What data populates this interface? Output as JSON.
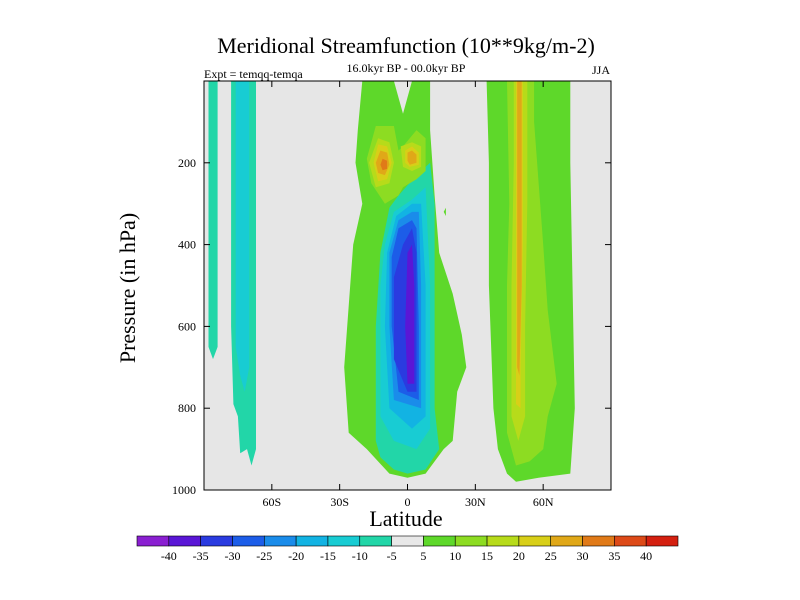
{
  "chart_data": {
    "type": "heatmap",
    "title": "Meridional Streamfunction (10**9kg/m-2)",
    "subtitle": "16.0kyr BP - 00.0kyr BP",
    "left_annotation": "Expt = temqq-temqa",
    "right_annotation": "JJA",
    "xlabel": "Latitude",
    "ylabel": "Pressure (in hPa)",
    "xlim": [
      -90,
      90
    ],
    "ylim": [
      1000,
      0
    ],
    "x_ticks": [
      {
        "value": -60,
        "label": "60S"
      },
      {
        "value": -30,
        "label": "30S"
      },
      {
        "value": 0,
        "label": "0"
      },
      {
        "value": 30,
        "label": "30N"
      },
      {
        "value": 60,
        "label": "60N"
      }
    ],
    "y_ticks": [
      {
        "value": 200,
        "label": "200"
      },
      {
        "value": 400,
        "label": "400"
      },
      {
        "value": 600,
        "label": "600"
      },
      {
        "value": 800,
        "label": "800"
      },
      {
        "value": 1000,
        "label": "1000"
      }
    ],
    "background_color": "#e6e6e6",
    "colorbar": {
      "levels": [
        "-40",
        "-35",
        "-30",
        "-25",
        "-20",
        "-15",
        "-10",
        "-5",
        "5",
        "10",
        "15",
        "20",
        "25",
        "30",
        "35",
        "40"
      ],
      "colors": [
        "#8a1fd1",
        "#5a16d6",
        "#2a3be0",
        "#1c5de8",
        "#1a8cea",
        "#12b3e3",
        "#18ccd3",
        "#22d6a8",
        "#e8e8e8",
        "#5ed82a",
        "#8ddc22",
        "#b7db1a",
        "#d8cf18",
        "#e0a818",
        "#e07a18",
        "#dd4a18",
        "#d42010"
      ]
    },
    "regions": [
      {
        "label": "-5",
        "color": "#22d6a8",
        "points": [
          [
            -88,
            0
          ],
          [
            -84,
            0
          ],
          [
            -84,
            650
          ],
          [
            -86,
            680
          ],
          [
            -88,
            650
          ]
        ]
      },
      {
        "label": "-5",
        "color": "#22d6a8",
        "points": [
          [
            -78,
            0
          ],
          [
            -67,
            0
          ],
          [
            -67,
            900
          ],
          [
            -69,
            940
          ],
          [
            -71,
            900
          ],
          [
            -74,
            910
          ],
          [
            -75,
            820
          ],
          [
            -77,
            790
          ],
          [
            -78,
            600
          ]
        ]
      },
      {
        "label": "-10",
        "color": "#18ccd3",
        "points": [
          [
            -76,
            0
          ],
          [
            -70,
            0
          ],
          [
            -70,
            700
          ],
          [
            -72,
            760
          ],
          [
            -74,
            720
          ],
          [
            -76,
            650
          ]
        ]
      },
      {
        "label": "5",
        "color": "#5ed82a",
        "points": [
          [
            -20,
            0
          ],
          [
            -6,
            0
          ],
          [
            -2,
            80
          ],
          [
            2,
            0
          ],
          [
            10,
            0
          ],
          [
            10,
            120
          ],
          [
            12,
            280
          ],
          [
            14,
            420
          ],
          [
            20,
            520
          ],
          [
            24,
            620
          ],
          [
            26,
            700
          ],
          [
            22,
            760
          ],
          [
            20,
            880
          ],
          [
            16,
            900
          ],
          [
            8,
            960
          ],
          [
            0,
            970
          ],
          [
            -8,
            960
          ],
          [
            -18,
            900
          ],
          [
            -26,
            860
          ],
          [
            -28,
            700
          ],
          [
            -24,
            400
          ],
          [
            -20,
            300
          ],
          [
            -23,
            200
          ],
          [
            -22,
            120
          ]
        ]
      },
      {
        "label": "-5",
        "color": "#22d6a8",
        "points": [
          [
            -8,
            310
          ],
          [
            -4,
            280
          ],
          [
            4,
            230
          ],
          [
            10,
            200
          ],
          [
            12,
            300
          ],
          [
            12,
            500
          ],
          [
            12,
            800
          ],
          [
            14,
            900
          ],
          [
            8,
            950
          ],
          [
            0,
            960
          ],
          [
            -6,
            950
          ],
          [
            -12,
            920
          ],
          [
            -14,
            880
          ],
          [
            -14,
            600
          ],
          [
            -12,
            420
          ]
        ]
      },
      {
        "label": "-10",
        "color": "#18ccd3",
        "points": [
          [
            -6,
            320
          ],
          [
            2,
            290
          ],
          [
            8,
            260
          ],
          [
            10,
            500
          ],
          [
            10,
            850
          ],
          [
            4,
            900
          ],
          [
            -6,
            880
          ],
          [
            -12,
            820
          ],
          [
            -12,
            500
          ],
          [
            -10,
            400
          ]
        ]
      },
      {
        "label": "-15",
        "color": "#12b3e3",
        "points": [
          [
            -5,
            330
          ],
          [
            2,
            300
          ],
          [
            6,
            300
          ],
          [
            8,
            500
          ],
          [
            8,
            820
          ],
          [
            2,
            850
          ],
          [
            -8,
            800
          ],
          [
            -10,
            600
          ],
          [
            -9,
            420
          ]
        ]
      },
      {
        "label": "-20",
        "color": "#1a8cea",
        "points": [
          [
            -4,
            340
          ],
          [
            2,
            320
          ],
          [
            5,
            320
          ],
          [
            6,
            500
          ],
          [
            6,
            800
          ],
          [
            -6,
            780
          ],
          [
            -8,
            600
          ],
          [
            -8,
            420
          ]
        ]
      },
      {
        "label": "-25",
        "color": "#1c5de8",
        "points": [
          [
            -4,
            360
          ],
          [
            2,
            340
          ],
          [
            4,
            360
          ],
          [
            5,
            600
          ],
          [
            5,
            780
          ],
          [
            -4,
            760
          ],
          [
            -7,
            600
          ],
          [
            -7,
            430
          ]
        ]
      },
      {
        "label": "-30",
        "color": "#2a3be0",
        "points": [
          [
            -2,
            400
          ],
          [
            2,
            360
          ],
          [
            4,
            420
          ],
          [
            4,
            760
          ],
          [
            0,
            760
          ],
          [
            -6,
            680
          ],
          [
            -6,
            480
          ]
        ]
      },
      {
        "label": "-35",
        "color": "#5a16d6",
        "points": [
          [
            0,
            420
          ],
          [
            2,
            400
          ],
          [
            3,
            500
          ],
          [
            3,
            740
          ],
          [
            0,
            740
          ],
          [
            -1,
            600
          ]
        ]
      },
      {
        "label": "10",
        "color": "#8ddc22",
        "points": [
          [
            -14,
            110
          ],
          [
            -6,
            110
          ],
          [
            -4,
            170
          ],
          [
            -2,
            160
          ],
          [
            4,
            120
          ],
          [
            8,
            140
          ],
          [
            8,
            220
          ],
          [
            4,
            240
          ],
          [
            -2,
            260
          ],
          [
            -4,
            280
          ],
          [
            -10,
            300
          ],
          [
            -16,
            250
          ],
          [
            -18,
            190
          ]
        ]
      },
      {
        "label": "15",
        "color": "#b7db1a",
        "points": [
          [
            -13,
            140
          ],
          [
            -8,
            150
          ],
          [
            -6,
            200
          ],
          [
            -8,
            250
          ],
          [
            -14,
            260
          ],
          [
            -17,
            200
          ]
        ]
      },
      {
        "label": "15",
        "color": "#b7db1a",
        "points": [
          [
            -3,
            160
          ],
          [
            2,
            150
          ],
          [
            6,
            160
          ],
          [
            6,
            210
          ],
          [
            2,
            220
          ],
          [
            -2,
            210
          ]
        ]
      },
      {
        "label": "20",
        "color": "#d8cf18",
        "points": [
          [
            -13,
            155
          ],
          [
            -9,
            160
          ],
          [
            -7,
            200
          ],
          [
            -9,
            240
          ],
          [
            -13,
            245
          ],
          [
            -15,
            200
          ]
        ]
      },
      {
        "label": "20",
        "color": "#d8cf18",
        "points": [
          [
            -1,
            170
          ],
          [
            2,
            160
          ],
          [
            5,
            175
          ],
          [
            5,
            205
          ],
          [
            1,
            210
          ],
          [
            -1,
            200
          ]
        ]
      },
      {
        "label": "25",
        "color": "#e0a818",
        "points": [
          [
            -12,
            170
          ],
          [
            -9,
            175
          ],
          [
            -8,
            205
          ],
          [
            -10,
            230
          ],
          [
            -13,
            225
          ],
          [
            -14,
            200
          ]
        ]
      },
      {
        "label": "25",
        "color": "#e0a818",
        "points": [
          [
            0,
            175
          ],
          [
            2,
            170
          ],
          [
            4,
            180
          ],
          [
            4,
            200
          ],
          [
            1,
            205
          ],
          [
            0,
            195
          ]
        ]
      },
      {
        "label": "30",
        "color": "#e07a18",
        "points": [
          [
            -11,
            190
          ],
          [
            -9,
            195
          ],
          [
            -9,
            215
          ],
          [
            -11,
            218
          ],
          [
            -12,
            205
          ]
        ]
      },
      {
        "label": "5",
        "color": "#5ed82a",
        "points": [
          [
            35,
            0
          ],
          [
            72,
            0
          ],
          [
            72,
            200
          ],
          [
            74,
            800
          ],
          [
            72,
            960
          ],
          [
            58,
            970
          ],
          [
            48,
            980
          ],
          [
            44,
            960
          ],
          [
            40,
            900
          ],
          [
            38,
            800
          ],
          [
            36,
            500
          ],
          [
            36,
            200
          ]
        ]
      },
      {
        "label": "10",
        "color": "#8ddc22",
        "points": [
          [
            44,
            0
          ],
          [
            56,
            0
          ],
          [
            56,
            100
          ],
          [
            60,
            400
          ],
          [
            62,
            560
          ],
          [
            66,
            740
          ],
          [
            62,
            820
          ],
          [
            60,
            900
          ],
          [
            54,
            930
          ],
          [
            48,
            940
          ],
          [
            44,
            860
          ],
          [
            44,
            500
          ],
          [
            45,
            300
          ]
        ]
      },
      {
        "label": "15",
        "color": "#b7db1a",
        "points": [
          [
            47,
            0
          ],
          [
            53,
            0
          ],
          [
            53,
            300
          ],
          [
            52,
            600
          ],
          [
            52,
            820
          ],
          [
            49,
            880
          ],
          [
            46,
            820
          ],
          [
            46,
            500
          ],
          [
            47,
            200
          ]
        ]
      },
      {
        "label": "20",
        "color": "#d8cf18",
        "points": [
          [
            48,
            0
          ],
          [
            51,
            0
          ],
          [
            51,
            400
          ],
          [
            50,
            700
          ],
          [
            50,
            800
          ],
          [
            48,
            790
          ],
          [
            48,
            500
          ]
        ]
      },
      {
        "label": "25",
        "color": "#e0a818",
        "points": [
          [
            48.5,
            0
          ],
          [
            50.5,
            0
          ],
          [
            50.5,
            500
          ],
          [
            49.5,
            720
          ],
          [
            48.5,
            700
          ],
          [
            48.5,
            400
          ]
        ]
      },
      {
        "label": "5",
        "color": "#5ed82a",
        "points": [
          [
            16,
            320
          ],
          [
            17,
            310
          ],
          [
            17,
            330
          ]
        ]
      },
      {
        "label": "5",
        "color": "#5ed82a",
        "points": [
          [
            70,
            760
          ],
          [
            71,
            750
          ],
          [
            71,
            770
          ]
        ]
      }
    ]
  }
}
